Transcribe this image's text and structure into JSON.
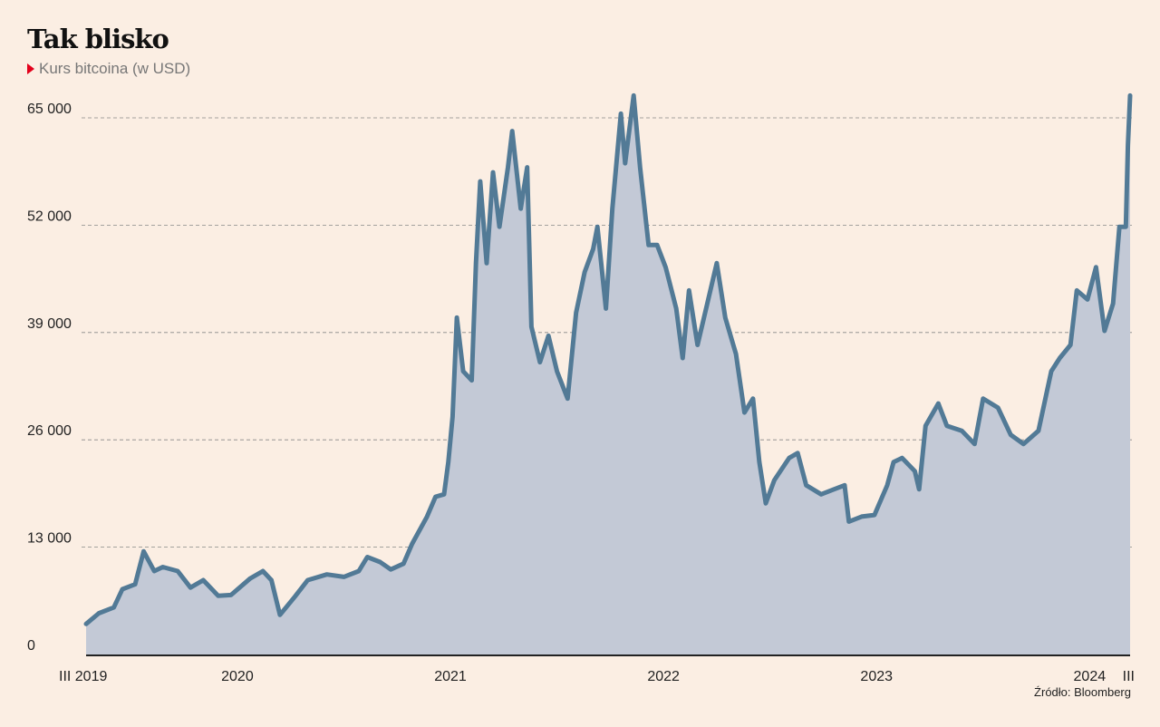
{
  "chart_data": {
    "type": "area",
    "title": "Tak blisko",
    "subtitle": "Kurs bitcoina (w USD)",
    "source": "Źródło: Bloomberg",
    "xlabel": "",
    "ylabel": "",
    "ylim": [
      0,
      65000
    ],
    "xlim": [
      2019.29,
      2024.19
    ],
    "grid": true,
    "y_ticks": [
      {
        "v": 0,
        "label": "0"
      },
      {
        "v": 13000,
        "label": "13 000"
      },
      {
        "v": 26000,
        "label": "26 000"
      },
      {
        "v": 39000,
        "label": "39 000"
      },
      {
        "v": 52000,
        "label": "52 000"
      },
      {
        "v": 65000,
        "label": "65 000"
      }
    ],
    "x_ticks": [
      {
        "v": 2019.29,
        "label": "III 2019",
        "anchor": "start"
      },
      {
        "v": 2020.0,
        "label": "2020",
        "anchor": "middle"
      },
      {
        "v": 2021.0,
        "label": "2021",
        "anchor": "middle"
      },
      {
        "v": 2022.0,
        "label": "2022",
        "anchor": "middle"
      },
      {
        "v": 2023.0,
        "label": "2023",
        "anchor": "middle"
      },
      {
        "v": 2024.0,
        "label": "2024",
        "anchor": "middle"
      },
      {
        "v": 2024.19,
        "label": "III",
        "anchor": "end"
      }
    ],
    "colors": {
      "line": "#527a96",
      "fill": "#c3c9d6",
      "grid": "#888888",
      "axis": "#222222"
    },
    "x": [
      2019.29,
      2019.35,
      2019.42,
      2019.46,
      2019.52,
      2019.56,
      2019.61,
      2019.65,
      2019.72,
      2019.78,
      2019.84,
      2019.91,
      2019.97,
      2020.06,
      2020.12,
      2020.16,
      2020.2,
      2020.27,
      2020.33,
      2020.42,
      2020.5,
      2020.57,
      2020.61,
      2020.67,
      2020.72,
      2020.78,
      2020.82,
      2020.89,
      2020.93,
      2020.97,
      2020.99,
      2021.01,
      2021.03,
      2021.06,
      2021.1,
      2021.12,
      2021.14,
      2021.17,
      2021.2,
      2021.23,
      2021.27,
      2021.29,
      2021.33,
      2021.36,
      2021.38,
      2021.42,
      2021.46,
      2021.5,
      2021.55,
      2021.59,
      2021.63,
      2021.67,
      2021.69,
      2021.73,
      2021.76,
      2021.8,
      2021.82,
      2021.86,
      2021.89,
      2021.93,
      2021.97,
      2022.01,
      2022.06,
      2022.09,
      2022.12,
      2022.16,
      2022.21,
      2022.25,
      2022.29,
      2022.34,
      2022.38,
      2022.42,
      2022.45,
      2022.48,
      2022.52,
      2022.59,
      2022.63,
      2022.67,
      2022.74,
      2022.8,
      2022.85,
      2022.87,
      2022.93,
      2022.99,
      2023.05,
      2023.08,
      2023.12,
      2023.18,
      2023.2,
      2023.23,
      2023.29,
      2023.33,
      2023.4,
      2023.46,
      2023.5,
      2023.57,
      2023.63,
      2023.69,
      2023.76,
      2023.82,
      2023.86,
      2023.91,
      2023.94,
      2023.99,
      2024.03,
      2024.07,
      2024.11,
      2024.14,
      2024.17,
      2024.18,
      2024.19
    ],
    "values": [
      3700,
      5000,
      5700,
      7900,
      8500,
      12500,
      10100,
      10600,
      10100,
      8100,
      9000,
      7100,
      7200,
      9200,
      10100,
      9000,
      4800,
      7000,
      9000,
      9700,
      9400,
      10100,
      11800,
      11200,
      10300,
      11000,
      13400,
      16700,
      19100,
      19400,
      23300,
      28800,
      40800,
      34300,
      33200,
      47400,
      57300,
      47400,
      58400,
      51800,
      59000,
      63400,
      54000,
      59000,
      39700,
      35400,
      38600,
      34300,
      31000,
      41400,
      46300,
      49100,
      51800,
      41900,
      54000,
      65500,
      59500,
      67700,
      59000,
      49600,
      49600,
      46900,
      41900,
      35900,
      44100,
      37500,
      43000,
      47400,
      40800,
      36400,
      29300,
      31000,
      23300,
      18300,
      21100,
      23800,
      24400,
      20500,
      19400,
      20000,
      20500,
      16100,
      16700,
      16900,
      20500,
      23300,
      23800,
      22200,
      20000,
      27700,
      30400,
      27700,
      27100,
      25500,
      31000,
      29900,
      26600,
      25500,
      27100,
      34300,
      35900,
      37500,
      44100,
      43000,
      46900,
      39200,
      42500,
      51800,
      51800,
      61700,
      67700
    ]
  }
}
